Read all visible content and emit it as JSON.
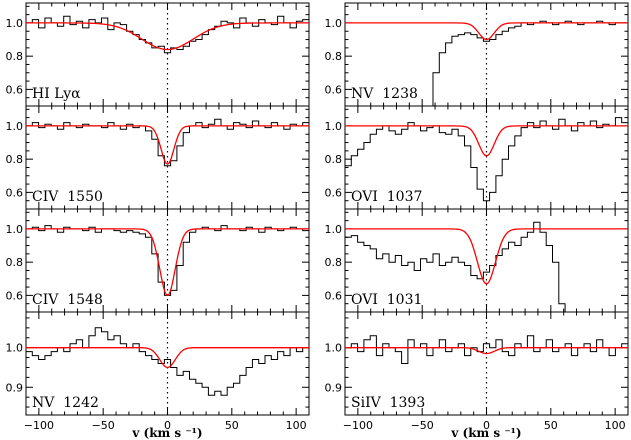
{
  "chart_data": {
    "type": "line",
    "x_axis": {
      "label": "v (km s ⁻¹)",
      "range": [
        -110,
        110
      ],
      "ticks": [
        -100,
        -50,
        0,
        50,
        100
      ],
      "tick_labels": [
        "−100",
        "−50",
        "0",
        "50",
        "100"
      ]
    },
    "colors": {
      "data": "#000000",
      "model": "#ff0000"
    },
    "panels": [
      {
        "column": 0,
        "row": 0,
        "label": "HI Lyα",
        "ylim": [
          0.5,
          1.12
        ],
        "yticks": [
          0.6,
          0.8,
          1.0
        ],
        "ytick_labels": [
          "0.6",
          "0.8",
          "1.0"
        ],
        "model": {
          "type": "gaussian",
          "centers": [
            0
          ],
          "depths": [
            0.16
          ],
          "sigmas": [
            20
          ]
        },
        "flux": [
          1.0,
          1.02,
          0.97,
          1.03,
          1.0,
          0.98,
          1.04,
          0.99,
          1.01,
          0.97,
          1.02,
          1.0,
          1.03,
          0.96,
          1.0,
          0.99,
          0.95,
          0.93,
          0.9,
          0.88,
          0.85,
          0.86,
          0.82,
          0.85,
          0.84,
          0.86,
          0.89,
          0.9,
          0.93,
          0.96,
          0.98,
          1.01,
          1.0,
          0.97,
          1.03,
          1.0,
          0.98,
          1.02,
          1.0,
          0.99,
          1.04,
          1.0,
          0.97,
          1.01,
          1.02
        ]
      },
      {
        "column": 0,
        "row": 1,
        "label": "CIV  1550",
        "ylim": [
          0.5,
          1.12
        ],
        "yticks": [
          0.6,
          0.8,
          1.0
        ],
        "ytick_labels": [
          "0.6",
          "0.8",
          "1.0"
        ],
        "model": {
          "type": "gaussian",
          "centers": [
            0
          ],
          "depths": [
            0.23
          ],
          "sigmas": [
            5
          ]
        },
        "flux": [
          1.0,
          1.02,
          0.99,
          1.01,
          1.0,
          0.98,
          1.02,
          1.0,
          0.99,
          1.01,
          1.0,
          1.0,
          0.99,
          1.02,
          1.0,
          0.98,
          1.01,
          0.99,
          1.0,
          0.97,
          0.92,
          0.82,
          0.76,
          0.79,
          0.88,
          0.96,
          1.0,
          1.02,
          0.99,
          1.01,
          1.04,
          1.0,
          0.98,
          1.02,
          1.01,
          0.99,
          1.03,
          1.0,
          0.99,
          1.02,
          1.0,
          0.98,
          1.01,
          1.0,
          1.02
        ]
      },
      {
        "column": 0,
        "row": 2,
        "label": "CIV  1548",
        "ylim": [
          0.5,
          1.12
        ],
        "yticks": [
          0.6,
          0.8,
          1.0
        ],
        "ytick_labels": [
          "0.6",
          "0.8",
          "1.0"
        ],
        "model": {
          "type": "gaussian",
          "centers": [
            0
          ],
          "depths": [
            0.4
          ],
          "sigmas": [
            6
          ]
        },
        "flux": [
          1.0,
          1.01,
          0.99,
          1.02,
          1.0,
          0.98,
          1.01,
          1.0,
          1.0,
          0.99,
          1.01,
          0.98,
          1.0,
          1.0,
          0.99,
          0.98,
          0.99,
          0.98,
          0.97,
          0.95,
          0.85,
          0.68,
          0.6,
          0.63,
          0.78,
          0.92,
          0.98,
          1.0,
          1.01,
          1.0,
          0.99,
          1.02,
          1.0,
          1.0,
          0.99,
          1.01,
          1.0,
          0.98,
          1.01,
          1.0,
          0.99,
          1.0,
          1.01,
          1.0,
          0.99
        ]
      },
      {
        "column": 0,
        "row": 3,
        "label": "NV  1242",
        "ylim": [
          0.83,
          1.09
        ],
        "yticks": [
          0.9,
          1.0
        ],
        "ytick_labels": [
          "0.9",
          "1.0"
        ],
        "model": {
          "type": "gaussian",
          "centers": [
            0
          ],
          "depths": [
            0.05
          ],
          "sigmas": [
            6
          ]
        },
        "flux": [
          0.99,
          0.98,
          0.97,
          0.98,
          0.99,
          1.0,
          0.99,
          1.01,
          1.02,
          1.0,
          1.03,
          1.05,
          1.04,
          1.02,
          1.03,
          1.01,
          1.0,
          1.01,
          0.99,
          0.98,
          0.97,
          0.96,
          0.97,
          0.95,
          0.93,
          0.94,
          0.92,
          0.91,
          0.9,
          0.88,
          0.89,
          0.88,
          0.9,
          0.91,
          0.93,
          0.95,
          0.97,
          0.96,
          0.98,
          0.97,
          0.99,
          0.98,
          1.0,
          0.99,
          1.0
        ]
      },
      {
        "column": 1,
        "row": 0,
        "label": "NV  1238",
        "ylim": [
          0.5,
          1.12
        ],
        "yticks": [
          0.6,
          0.8,
          1.0
        ],
        "ytick_labels": [
          "0.6",
          "0.8",
          "1.0"
        ],
        "model": {
          "type": "gaussian",
          "centers": [
            0
          ],
          "depths": [
            0.1
          ],
          "sigmas": [
            6
          ]
        },
        "flux": [
          null,
          null,
          null,
          null,
          null,
          null,
          null,
          null,
          null,
          null,
          null,
          null,
          null,
          0.5,
          0.7,
          0.82,
          0.88,
          0.92,
          0.93,
          0.94,
          0.93,
          0.91,
          0.89,
          0.9,
          0.93,
          0.95,
          0.97,
          0.98,
          1.0,
          0.99,
          1.0,
          1.01,
          1.0,
          0.99,
          1.0,
          1.01,
          1.0,
          0.99,
          1.0,
          1.0,
          1.01,
          1.0,
          0.99,
          1.0,
          1.0
        ]
      },
      {
        "column": 1,
        "row": 1,
        "label": "OVI  1037",
        "ylim": [
          0.5,
          1.12
        ],
        "yticks": [
          0.6,
          0.8,
          1.0
        ],
        "ytick_labels": [
          "0.6",
          "0.8",
          "1.0"
        ],
        "model": {
          "type": "gaussian",
          "centers": [
            0
          ],
          "depths": [
            0.18
          ],
          "sigmas": [
            6
          ]
        },
        "flux": [
          0.76,
          0.82,
          0.86,
          0.9,
          0.95,
          0.98,
          1.0,
          0.97,
          0.95,
          0.98,
          1.02,
          1.0,
          0.97,
          0.99,
          1.0,
          0.96,
          0.95,
          0.98,
          0.94,
          0.88,
          0.75,
          0.62,
          0.55,
          0.6,
          0.7,
          0.8,
          0.88,
          0.94,
          0.99,
          1.02,
          0.99,
          1.03,
          1.0,
          0.98,
          1.04,
          1.0,
          0.97,
          1.02,
          1.0,
          1.03,
          0.99,
          1.01,
          1.0,
          1.05,
          1.02
        ]
      },
      {
        "column": 1,
        "row": 2,
        "label": "OVI  1031",
        "ylim": [
          0.5,
          1.12
        ],
        "yticks": [
          0.6,
          0.8,
          1.0
        ],
        "ytick_labels": [
          "0.6",
          "0.8",
          "1.0"
        ],
        "model": {
          "type": "gaussian",
          "centers": [
            0
          ],
          "depths": [
            0.33
          ],
          "sigmas": [
            7
          ]
        },
        "flux": [
          0.95,
          0.96,
          0.92,
          0.9,
          0.88,
          0.82,
          0.85,
          0.8,
          0.84,
          0.78,
          0.8,
          0.75,
          0.82,
          0.8,
          0.85,
          0.78,
          0.8,
          0.83,
          0.8,
          0.78,
          0.72,
          0.7,
          0.74,
          0.78,
          0.84,
          0.88,
          0.92,
          0.9,
          0.95,
          0.98,
          1.04,
          0.98,
          0.9,
          0.8,
          0.55,
          0.5,
          null,
          null,
          null,
          null,
          null,
          null,
          null,
          null,
          null
        ]
      },
      {
        "column": 1,
        "row": 3,
        "label": "SiIV  1393",
        "ylim": [
          0.83,
          1.09
        ],
        "yticks": [
          0.9,
          1.0
        ],
        "ytick_labels": [
          "0.9",
          "1.0"
        ],
        "model": {
          "type": "gaussian",
          "centers": [
            0
          ],
          "depths": [
            0.015
          ],
          "sigmas": [
            6
          ]
        },
        "flux": [
          1.0,
          1.01,
          0.99,
          1.02,
          1.03,
          0.98,
          1.01,
          1.0,
          0.99,
          0.96,
          1.02,
          1.0,
          1.01,
          0.98,
          1.0,
          1.02,
          0.99,
          1.0,
          1.01,
          0.98,
          1.0,
          0.99,
          1.01,
          1.0,
          1.02,
          0.99,
          0.98,
          1.01,
          1.0,
          1.03,
          0.99,
          1.0,
          1.02,
          0.99,
          1.0,
          1.01,
          0.98,
          1.0,
          1.01,
          0.99,
          1.02,
          1.0,
          0.98,
          1.0,
          1.01
        ]
      }
    ]
  }
}
